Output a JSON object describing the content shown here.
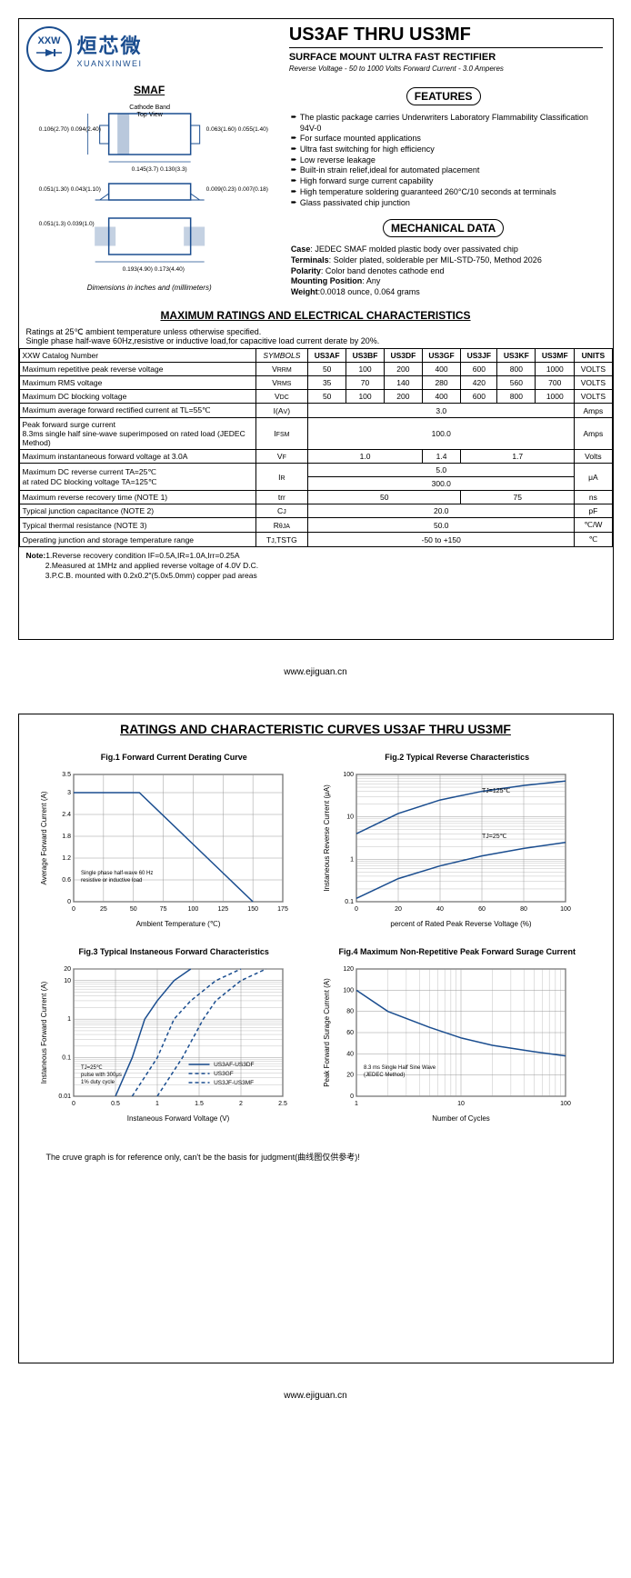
{
  "brand": {
    "cn": "烜芯微",
    "en": "XUANXINWEI",
    "logo_letters": "XXW"
  },
  "title": "US3AF THRU US3MF",
  "subtitle": "SURFACE MOUNT ULTRA FAST RECTIFIER",
  "spec_line": "Reverse Voltage - 50 to 1000 Volts   Forward Current -  3.0 Amperes",
  "smaf_label": "SMAF",
  "pkg_note": "Dimensions in inches and (millimeters)",
  "pkg_dims": {
    "cathode_label": "Cathode Band\nTop View",
    "d1": "0.106(2.70)\n0.094(2.40)",
    "d2": "0.063(1.60)\n0.055(1.40)",
    "d3": "0.145(3.7)\n0.130(3.3)",
    "d4": "0.051(1.30)\n0.043(1.10)",
    "d5": "0.009(0.23)\n0.007(0.18)",
    "d6": "0.051(1.3)\n0.039(1.0)",
    "d7": "0.193(4.90)\n0.173(4.40)"
  },
  "features_title": "FEATURES",
  "features": [
    "The plastic package carries Underwriters Laboratory Flammability Classification 94V-0",
    "For surface mounted applications",
    "Ultra fast switching for high efficiency",
    "Low reverse leakage",
    "Built-in strain relief,ideal for automated placement",
    "High forward surge current capability",
    "High temperature soldering guaranteed 260°C/10 seconds at terminals",
    "Glass passivated chip junction"
  ],
  "mech_title": "MECHANICAL DATA",
  "mech": {
    "case": "JEDEC SMAF molded plastic body over passivated chip",
    "terminals": "Solder plated, solderable per MIL-STD-750, Method 2026",
    "polarity": "Color band denotes cathode end",
    "mounting": "Any",
    "weight": "0.0018 ounce, 0.064 grams"
  },
  "ratings_title": "MAXIMUM RATINGS AND ELECTRICAL CHARACTERISTICS",
  "ratings_note1": "Ratings at 25℃ ambient temperature unless otherwise specified.",
  "ratings_note2": "Single phase half-wave 60Hz,resistive or inductive load,for capacitive load current derate by 20%.",
  "table": {
    "header_param": "XXW Catalog  Number",
    "header_symbol": "SYMBOLS",
    "parts": [
      "US3AF",
      "US3BF",
      "US3DF",
      "US3GF",
      "US3JF",
      "US3KF",
      "US3MF"
    ],
    "header_units": "UNITS",
    "rows": [
      {
        "param": "Maximum repetitive peak reverse voltage",
        "sym": "VRRM",
        "vals": [
          "50",
          "100",
          "200",
          "400",
          "600",
          "800",
          "1000"
        ],
        "unit": "VOLTS"
      },
      {
        "param": "Maximum RMS voltage",
        "sym": "VRMS",
        "vals": [
          "35",
          "70",
          "140",
          "280",
          "420",
          "560",
          "700"
        ],
        "unit": "VOLTS"
      },
      {
        "param": "Maximum DC blocking voltage",
        "sym": "VDC",
        "vals": [
          "50",
          "100",
          "200",
          "400",
          "600",
          "800",
          "1000"
        ],
        "unit": "VOLTS"
      },
      {
        "param": "Maximum average forward rectified current at TL=55℃",
        "sym": "I(AV)",
        "span": "3.0",
        "unit": "Amps"
      },
      {
        "param": "Peak forward surge current\n8.3ms single half sine-wave superimposed on rated load (JEDEC Method)",
        "sym": "IFSM",
        "span": "100.0",
        "unit": "Amps"
      },
      {
        "param": "Maximum instantaneous forward voltage at 3.0A",
        "sym": "VF",
        "groups": [
          {
            "span": 3,
            "val": "1.0"
          },
          {
            "span": 1,
            "val": "1.4"
          },
          {
            "span": 3,
            "val": "1.7"
          }
        ],
        "unit": "Volts"
      },
      {
        "param": "Maximum DC reverse current    TA=25℃\nat rated DC blocking voltage       TA=125℃",
        "sym": "IR",
        "stacked": [
          "5.0",
          "300.0"
        ],
        "unit": "μA"
      },
      {
        "param": "Maximum reverse recovery time     (NOTE 1)",
        "sym": "trr",
        "groups": [
          {
            "span": 4,
            "val": "50"
          },
          {
            "span": 3,
            "val": "75"
          }
        ],
        "unit": "ns"
      },
      {
        "param": "Typical junction capacitance (NOTE 2)",
        "sym": "CJ",
        "span": "20.0",
        "unit": "pF"
      },
      {
        "param": "Typical thermal resistance (NOTE 3)",
        "sym": "RθJA",
        "span": "50.0",
        "unit": "℃/W"
      },
      {
        "param": "Operating junction and storage temperature range",
        "sym": "TJ,TSTG",
        "span": "-50 to +150",
        "unit": "℃"
      }
    ]
  },
  "notes_label": "Note:",
  "notes": [
    "1.Reverse recovery condition IF=0.5A,IR=1.0A,Irr=0.25A",
    "2.Measured at 1MHz and applied reverse voltage of 4.0V D.C.",
    "3.P.C.B. mounted with 0.2x0.2\"(5.0x5.0mm) copper pad areas"
  ],
  "footer_url": "www.ejiguan.cn",
  "page2_title": "RATINGS AND CHARACTERISTIC CURVES US3AF THRU US3MF",
  "charts": {
    "fig1": {
      "title": "Fig.1  Forward Current Derating Curve",
      "xlabel": "Ambient Temperature (℃)",
      "ylabel": "Average Forward Current (A)",
      "xlim": [
        0,
        175
      ],
      "xticks": [
        0,
        25,
        50,
        75,
        100,
        125,
        150,
        175
      ],
      "ylim": [
        0,
        3.5
      ],
      "yticks": [
        0,
        0.6,
        1.2,
        1.8,
        2.4,
        3.0,
        3.5
      ],
      "note": "Single phase half-wave 60 Hz\nresistive or inductive load",
      "line_color": "#1a4d8f",
      "data": [
        [
          0,
          3.0
        ],
        [
          55,
          3.0
        ],
        [
          150,
          0
        ]
      ],
      "bg": "#ffffff",
      "grid": "#999"
    },
    "fig2": {
      "title": "Fig.2  Typical Reverse Characteristics",
      "xlabel": "percent of Rated  Peak Reverse Voltage (%)",
      "ylabel": "Instaneous Reverse Current (μA)",
      "xlim": [
        0,
        100
      ],
      "xticks": [
        0,
        20,
        40,
        60,
        80,
        100
      ],
      "ylog": true,
      "ylim": [
        0.1,
        100
      ],
      "labels": [
        "TJ=125℃",
        "TJ=25℃"
      ],
      "line_color": "#1a4d8f",
      "curves": [
        [
          [
            0,
            4
          ],
          [
            20,
            12
          ],
          [
            40,
            25
          ],
          [
            60,
            40
          ],
          [
            80,
            55
          ],
          [
            100,
            70
          ]
        ],
        [
          [
            0,
            0.12
          ],
          [
            20,
            0.35
          ],
          [
            40,
            0.7
          ],
          [
            60,
            1.2
          ],
          [
            80,
            1.8
          ],
          [
            100,
            2.5
          ]
        ]
      ],
      "bg": "#ffffff",
      "grid": "#999"
    },
    "fig3": {
      "title": "Fig.3  Typical Instaneous Forward Characteristics",
      "xlabel": "Instaneous Forward Voltage (V)",
      "ylabel": "Instaneous Forward Current (A)",
      "xlim": [
        0,
        2.5
      ],
      "xticks": [
        0.0,
        0.5,
        1.0,
        1.5,
        2.0,
        2.5
      ],
      "ylog": true,
      "ylim": [
        0.01,
        20
      ],
      "note": "TJ=25℃\npulse with 300μs\n1% duty cycle",
      "legend": [
        "US3AF-US3DF",
        "US3GF",
        "US3JF-US3MF"
      ],
      "styles": [
        "solid",
        "dashed",
        "dashed"
      ],
      "line_color": "#1a4d8f",
      "curves": [
        [
          [
            0.5,
            0.01
          ],
          [
            0.7,
            0.1
          ],
          [
            0.85,
            1
          ],
          [
            1.0,
            3
          ],
          [
            1.2,
            10
          ],
          [
            1.4,
            20
          ]
        ],
        [
          [
            0.7,
            0.01
          ],
          [
            1.0,
            0.1
          ],
          [
            1.2,
            1
          ],
          [
            1.4,
            3
          ],
          [
            1.7,
            10
          ],
          [
            2.0,
            20
          ]
        ],
        [
          [
            1.0,
            0.01
          ],
          [
            1.3,
            0.1
          ],
          [
            1.55,
            1
          ],
          [
            1.7,
            3
          ],
          [
            2.0,
            10
          ],
          [
            2.3,
            20
          ]
        ]
      ],
      "bg": "#ffffff",
      "grid": "#999"
    },
    "fig4": {
      "title": "Fig.4  Maximum Non-Repetitive Peak Forward Surage Current",
      "xlabel": "Number of Cycles",
      "ylabel": "Peak Forward Surage Current (A)",
      "xlog": true,
      "xlim": [
        1,
        100
      ],
      "ylim": [
        0,
        120
      ],
      "yticks": [
        0,
        20,
        40,
        60,
        80,
        100,
        120
      ],
      "note": "8.3 ms Single Half Sine Wave\n(JEDEC Method)",
      "line_color": "#1a4d8f",
      "data": [
        [
          1,
          100
        ],
        [
          2,
          80
        ],
        [
          5,
          65
        ],
        [
          10,
          55
        ],
        [
          20,
          48
        ],
        [
          50,
          42
        ],
        [
          100,
          38
        ]
      ],
      "bg": "#ffffff",
      "grid": "#999"
    }
  },
  "disclaimer": "The cruve graph is for reference only, can't be the basis for judgment(曲线图仅供参考)!"
}
